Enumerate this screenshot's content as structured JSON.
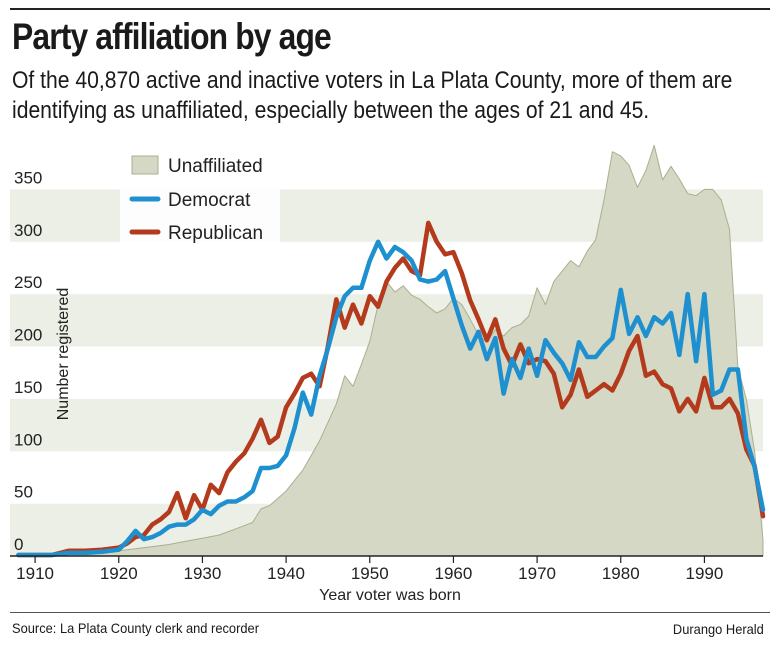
{
  "header": {
    "title": "Party affiliation by age",
    "subtitle": "Of the 40,870 active and inactive voters in La Plata County, more of them are identifying as unaffiliated, especially between the ages of 21 and 45."
  },
  "footer": {
    "source": "Source: La Plata County clerk and recorder",
    "credit": "Durango Herald"
  },
  "colors": {
    "unaffiliated_fill": "#d4d8c4",
    "unaffiliated_stroke": "#a9b08e",
    "democrat": "#1e90cf",
    "republican": "#b33a1c",
    "band": "#ecefe6"
  },
  "chart_data": {
    "type": "line",
    "xlabel": "Year voter was born",
    "ylabel": "Number registered",
    "xlim": [
      1907,
      1997
    ],
    "ylim": [
      0,
      400
    ],
    "x_ticks": [
      "1910",
      "1920",
      "1930",
      "1940",
      "1950",
      "1960",
      "1970",
      "1980",
      "1990"
    ],
    "y_ticks": [
      "0",
      "50",
      "100",
      "150",
      "200",
      "250",
      "300",
      "350"
    ],
    "legend": "top-left",
    "series": [
      {
        "name": "Unaffiliated",
        "style": "area",
        "x": [
          1908,
          1912,
          1914,
          1916,
          1918,
          1920,
          1922,
          1924,
          1926,
          1928,
          1930,
          1932,
          1934,
          1936,
          1937,
          1938,
          1940,
          1942,
          1944,
          1946,
          1947,
          1948,
          1949,
          1950,
          1951,
          1952,
          1953,
          1954,
          1955,
          1956,
          1957,
          1958,
          1959,
          1960,
          1961,
          1962,
          1963,
          1964,
          1965,
          1966,
          1967,
          1968,
          1969,
          1970,
          1971,
          1972,
          1973,
          1974,
          1975,
          1976,
          1977,
          1978,
          1979,
          1980,
          1981,
          1982,
          1983,
          1984,
          1985,
          1986,
          1987,
          1988,
          1989,
          1990,
          1991,
          1992,
          1993,
          1994,
          1995,
          1996,
          1997
        ],
        "values": [
          1,
          1,
          2,
          2,
          3,
          5,
          7,
          9,
          11,
          14,
          17,
          20,
          26,
          32,
          45,
          48,
          62,
          82,
          110,
          145,
          172,
          162,
          183,
          205,
          240,
          262,
          252,
          258,
          249,
          245,
          238,
          232,
          236,
          246,
          240,
          226,
          211,
          204,
          216,
          210,
          218,
          221,
          229,
          256,
          240,
          262,
          272,
          282,
          276,
          291,
          302,
          340,
          386,
          382,
          373,
          352,
          368,
          392,
          359,
          372,
          360,
          346,
          344,
          350,
          350,
          340,
          312,
          180,
          150,
          100,
          15
        ]
      },
      {
        "name": "Democrat",
        "style": "line",
        "x": [
          1908,
          1912,
          1914,
          1916,
          1918,
          1920,
          1921,
          1922,
          1923,
          1924,
          1925,
          1926,
          1927,
          1928,
          1929,
          1930,
          1931,
          1932,
          1933,
          1934,
          1935,
          1936,
          1937,
          1938,
          1939,
          1940,
          1941,
          1942,
          1943,
          1944,
          1945,
          1946,
          1947,
          1948,
          1949,
          1950,
          1951,
          1952,
          1953,
          1954,
          1955,
          1956,
          1957,
          1958,
          1959,
          1960,
          1961,
          1962,
          1963,
          1964,
          1965,
          1966,
          1967,
          1968,
          1969,
          1970,
          1971,
          1972,
          1973,
          1974,
          1975,
          1976,
          1977,
          1978,
          1979,
          1980,
          1981,
          1982,
          1983,
          1984,
          1985,
          1986,
          1987,
          1988,
          1989,
          1990,
          1991,
          1992,
          1993,
          1994,
          1995,
          1996,
          1997
        ],
        "values": [
          1,
          1,
          3,
          3,
          4,
          6,
          14,
          24,
          16,
          18,
          22,
          28,
          30,
          30,
          35,
          44,
          40,
          48,
          52,
          52,
          56,
          62,
          84,
          84,
          86,
          96,
          122,
          156,
          135,
          172,
          198,
          228,
          248,
          256,
          256,
          282,
          300,
          284,
          295,
          290,
          282,
          264,
          262,
          264,
          272,
          246,
          220,
          198,
          214,
          188,
          208,
          155,
          188,
          170,
          198,
          172,
          206,
          194,
          184,
          168,
          204,
          190,
          190,
          200,
          208,
          254,
          212,
          228,
          210,
          228,
          222,
          232,
          192,
          250,
          186,
          250,
          154,
          158,
          178,
          178,
          112,
          85,
          44
        ]
      },
      {
        "name": "Republican",
        "style": "line",
        "x": [
          1908,
          1912,
          1914,
          1916,
          1918,
          1920,
          1921,
          1922,
          1923,
          1924,
          1925,
          1926,
          1927,
          1928,
          1929,
          1930,
          1931,
          1932,
          1933,
          1934,
          1935,
          1936,
          1937,
          1938,
          1939,
          1940,
          1941,
          1942,
          1943,
          1944,
          1945,
          1946,
          1947,
          1948,
          1949,
          1950,
          1951,
          1952,
          1953,
          1954,
          1955,
          1956,
          1957,
          1958,
          1959,
          1960,
          1961,
          1962,
          1963,
          1964,
          1965,
          1966,
          1967,
          1968,
          1969,
          1970,
          1971,
          1972,
          1973,
          1974,
          1975,
          1976,
          1977,
          1978,
          1979,
          1980,
          1981,
          1982,
          1983,
          1984,
          1985,
          1986,
          1987,
          1988,
          1989,
          1990,
          1991,
          1992,
          1993,
          1994,
          1995,
          1996,
          1997
        ],
        "values": [
          1,
          1,
          5,
          5,
          6,
          8,
          12,
          18,
          20,
          30,
          35,
          42,
          60,
          36,
          58,
          44,
          68,
          60,
          80,
          90,
          98,
          112,
          130,
          108,
          114,
          142,
          155,
          170,
          174,
          162,
          200,
          245,
          218,
          240,
          222,
          248,
          238,
          262,
          275,
          284,
          272,
          268,
          318,
          300,
          288,
          290,
          270,
          244,
          226,
          206,
          226,
          198,
          182,
          202,
          184,
          188,
          186,
          174,
          142,
          154,
          178,
          152,
          158,
          164,
          158,
          174,
          196,
          210,
          172,
          176,
          164,
          160,
          138,
          150,
          138,
          170,
          142,
          142,
          150,
          136,
          102,
          86,
          38
        ]
      }
    ]
  }
}
